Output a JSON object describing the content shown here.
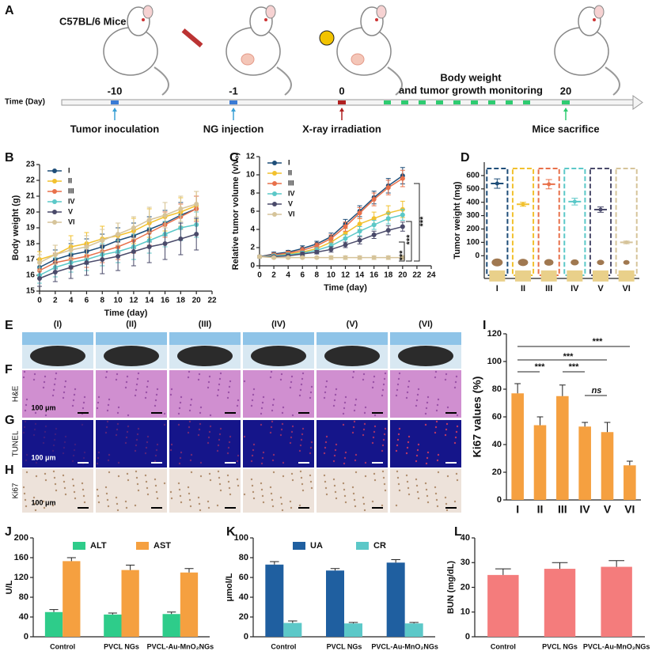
{
  "panel_labels": [
    "A",
    "B",
    "C",
    "D",
    "E",
    "F",
    "G",
    "H",
    "I",
    "J",
    "K",
    "L"
  ],
  "timeline": {
    "title": "C57BL/6 Mice",
    "axis_label": "Time (Day)",
    "monitoring": [
      "Body weight",
      "and tumor growth monitoring"
    ],
    "events": [
      {
        "day": "-10",
        "label": "Tumor inoculation"
      },
      {
        "day": "-1",
        "label": "NG injection"
      },
      {
        "day": "0",
        "label": "X-ray irradiation"
      },
      {
        "day": "20",
        "label": "Mice sacrifice"
      }
    ]
  },
  "images": {
    "columns": [
      "(I)",
      "(II)",
      "(III)",
      "(IV)",
      "(V)",
      "(VI)"
    ],
    "rows": [
      "H&E",
      "TUNEL",
      "Ki67"
    ],
    "scale_bar": "100 μm"
  },
  "chart_data": [
    {
      "type": "line",
      "x_label": "Time (day)",
      "y_label": "Body weight (g)",
      "x": [
        0,
        2,
        4,
        6,
        8,
        10,
        12,
        14,
        16,
        18,
        20
      ],
      "xlim": [
        0,
        22
      ],
      "xticks": [
        0,
        2,
        4,
        6,
        8,
        10,
        12,
        14,
        16,
        18,
        20,
        22
      ],
      "ylim": [
        15,
        23
      ],
      "yticks": [
        15,
        16,
        17,
        18,
        19,
        20,
        21,
        22,
        23
      ],
      "series": [
        {
          "name": "I",
          "color": "#1f4e79",
          "values": [
            16.5,
            17.0,
            17.3,
            17.5,
            17.8,
            18.2,
            18.5,
            18.9,
            19.3,
            19.8,
            20.2
          ],
          "errors": [
            0.5,
            0.6,
            0.7,
            0.8,
            0.8,
            0.8,
            0.8,
            0.8,
            0.8,
            0.8,
            0.8
          ]
        },
        {
          "name": "II",
          "color": "#f2c12e",
          "values": [
            17.0,
            17.3,
            17.8,
            18.0,
            18.3,
            18.5,
            18.8,
            19.3,
            19.7,
            20.0,
            20.4
          ],
          "errors": [
            0.5,
            0.6,
            0.7,
            0.7,
            0.8,
            0.8,
            0.8,
            0.9,
            0.9,
            0.9,
            0.9
          ]
        },
        {
          "name": "III",
          "color": "#e8704a",
          "values": [
            16.3,
            16.8,
            17.0,
            17.2,
            17.5,
            17.8,
            18.2,
            18.7,
            19.2,
            19.7,
            20.2
          ],
          "errors": [
            0.5,
            0.6,
            0.6,
            0.7,
            0.7,
            0.8,
            0.8,
            0.8,
            0.8,
            0.8,
            0.8
          ]
        },
        {
          "name": "IV",
          "color": "#5bc8c8",
          "values": [
            16.0,
            16.5,
            16.8,
            17.0,
            17.3,
            17.5,
            17.8,
            18.2,
            18.6,
            19.0,
            19.2
          ],
          "errors": [
            0.5,
            0.6,
            0.6,
            0.7,
            0.7,
            0.7,
            0.8,
            0.8,
            0.8,
            0.8,
            0.8
          ]
        },
        {
          "name": "V",
          "color": "#4a4a6a",
          "values": [
            15.8,
            16.2,
            16.5,
            16.8,
            17.0,
            17.2,
            17.5,
            17.8,
            18.0,
            18.3,
            18.6
          ],
          "errors": [
            0.5,
            0.6,
            0.7,
            0.8,
            0.9,
            0.9,
            0.9,
            1.0,
            1.0,
            1.0,
            1.0
          ]
        },
        {
          "name": "VI",
          "color": "#d6c49a",
          "values": [
            16.8,
            17.3,
            17.6,
            17.8,
            18.2,
            18.6,
            19.0,
            19.5,
            19.8,
            20.2,
            20.5
          ],
          "errors": [
            0.5,
            0.6,
            0.6,
            0.7,
            0.7,
            0.7,
            0.7,
            0.8,
            0.8,
            0.8,
            0.8
          ]
        }
      ]
    },
    {
      "type": "line",
      "x_label": "Time (day)",
      "y_label": "Relative tumor volume (v/v₀)",
      "x": [
        0,
        2,
        4,
        6,
        8,
        10,
        12,
        14,
        16,
        18,
        20
      ],
      "xlim": [
        0,
        24
      ],
      "xticks": [
        0,
        2,
        4,
        6,
        8,
        10,
        12,
        14,
        16,
        18,
        20,
        22,
        24
      ],
      "ylim": [
        0,
        12
      ],
      "yticks": [
        0,
        2,
        4,
        6,
        8,
        10,
        12
      ],
      "annotations": [
        "***",
        "***",
        "***"
      ],
      "series": [
        {
          "name": "I",
          "color": "#1f4e79",
          "values": [
            1,
            1.3,
            1.5,
            1.9,
            2.4,
            3.2,
            4.6,
            6.0,
            7.5,
            8.8,
            9.9
          ],
          "errors": [
            0.1,
            0.2,
            0.2,
            0.3,
            0.3,
            0.4,
            0.5,
            0.6,
            0.7,
            0.8,
            0.9
          ]
        },
        {
          "name": "II",
          "color": "#f2c12e",
          "values": [
            1,
            1.1,
            1.3,
            1.5,
            1.9,
            2.6,
            3.6,
            4.6,
            5.2,
            5.8,
            6.2
          ],
          "errors": [
            0.1,
            0.2,
            0.2,
            0.3,
            0.3,
            0.4,
            0.5,
            0.6,
            0.7,
            0.8,
            0.9
          ]
        },
        {
          "name": "III",
          "color": "#e8704a",
          "values": [
            1,
            1.2,
            1.4,
            1.7,
            2.2,
            3.0,
            4.3,
            5.8,
            7.3,
            8.6,
            9.6
          ],
          "errors": [
            0.1,
            0.2,
            0.2,
            0.3,
            0.3,
            0.4,
            0.5,
            0.6,
            0.7,
            0.8,
            0.9
          ]
        },
        {
          "name": "IV",
          "color": "#5bc8c8",
          "values": [
            1,
            1.1,
            1.2,
            1.4,
            1.7,
            2.2,
            3.0,
            3.8,
            4.5,
            5.2,
            5.6
          ],
          "errors": [
            0.1,
            0.1,
            0.2,
            0.2,
            0.3,
            0.3,
            0.4,
            0.5,
            0.5,
            0.6,
            0.6
          ]
        },
        {
          "name": "V",
          "color": "#4a4a6a",
          "values": [
            1,
            1.0,
            1.1,
            1.3,
            1.5,
            1.8,
            2.3,
            2.8,
            3.4,
            3.9,
            4.3
          ],
          "errors": [
            0.1,
            0.1,
            0.2,
            0.2,
            0.2,
            0.3,
            0.3,
            0.4,
            0.4,
            0.5,
            0.5
          ]
        },
        {
          "name": "VI",
          "color": "#d6c49a",
          "values": [
            1,
            0.9,
            0.9,
            0.9,
            0.9,
            0.9,
            0.9,
            0.9,
            0.9,
            0.9,
            0.9
          ],
          "errors": [
            0.1,
            0.1,
            0.1,
            0.1,
            0.1,
            0.2,
            0.2,
            0.2,
            0.2,
            0.2,
            0.2
          ]
        }
      ]
    },
    {
      "type": "scatter",
      "y_label": "Tumor weight (mg)",
      "categories": [
        "I",
        "II",
        "III",
        "IV",
        "V",
        "VI"
      ],
      "values": [
        540,
        385,
        535,
        405,
        345,
        100
      ],
      "errors": [
        35,
        15,
        35,
        25,
        20,
        10
      ],
      "colors": [
        "#1f4e79",
        "#f2c12e",
        "#e8704a",
        "#5bc8c8",
        "#4a4a6a",
        "#d6c49a"
      ],
      "ylim": [
        -170,
        700
      ],
      "yticks": [
        0,
        100,
        200,
        300,
        400,
        500,
        600
      ]
    },
    {
      "type": "bar",
      "y_label": "Ki67 values (%)",
      "categories": [
        "I",
        "II",
        "III",
        "IV",
        "V",
        "VI"
      ],
      "values": [
        77,
        54,
        75,
        53,
        49,
        25
      ],
      "errors": [
        7,
        6,
        8,
        3,
        7,
        3
      ],
      "color": "#f5a040",
      "ylim": [
        0,
        120
      ],
      "yticks": [
        0,
        20,
        40,
        60,
        80,
        100,
        120
      ],
      "annotations": [
        "***",
        "***",
        "***",
        "***",
        "ns"
      ]
    },
    {
      "type": "bar",
      "y_label": "U/L",
      "categories": [
        "Control",
        "PVCL NGs",
        "PVCL-Au-MnO₂NGs"
      ],
      "ylim": [
        0,
        200
      ],
      "yticks": [
        0,
        40,
        80,
        120,
        160,
        200
      ],
      "series": [
        {
          "name": "ALT",
          "color": "#2ecc8a",
          "values": [
            50,
            45,
            46
          ],
          "errors": [
            5,
            3,
            4
          ]
        },
        {
          "name": "AST",
          "color": "#f5a040",
          "values": [
            153,
            135,
            130
          ],
          "errors": [
            7,
            10,
            8
          ]
        }
      ]
    },
    {
      "type": "bar",
      "y_label": "μmol/L",
      "categories": [
        "Control",
        "PVCL NGs",
        "PVCL-Au-MnO₂NGs"
      ],
      "ylim": [
        0,
        100
      ],
      "yticks": [
        0,
        20,
        40,
        60,
        80,
        100
      ],
      "series": [
        {
          "name": "UA",
          "color": "#1f5fa0",
          "values": [
            73,
            67,
            75
          ],
          "errors": [
            3,
            2,
            3
          ]
        },
        {
          "name": "CR",
          "color": "#5cc8c8",
          "values": [
            14,
            13.5,
            13.5
          ],
          "errors": [
            2,
            1,
            1
          ]
        }
      ]
    },
    {
      "type": "bar",
      "y_label": "BUN (mg/dL)",
      "categories": [
        "Control",
        "PVCL NGs",
        "PVCL-Au-MnO₂NGs"
      ],
      "values": [
        25,
        27.5,
        28.3
      ],
      "errors": [
        2.5,
        2.5,
        2.5
      ],
      "color": "#f47c7c",
      "ylim": [
        0,
        40
      ],
      "yticks": [
        0,
        10,
        20,
        30,
        40
      ]
    }
  ]
}
